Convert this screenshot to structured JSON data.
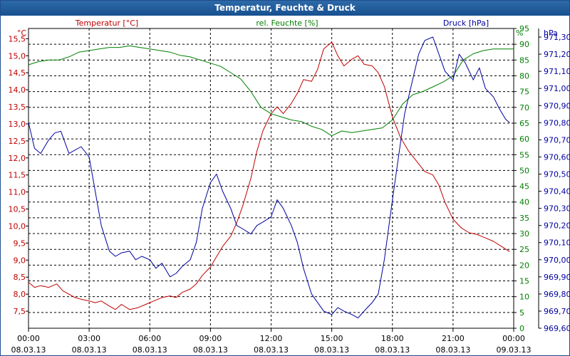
{
  "window": {
    "title": "Temperatur, Feuchte & Druck"
  },
  "colors": {
    "temperature": "#c00000",
    "humidity": "#008000",
    "pressure": "#0000a0",
    "grid": "#000000",
    "text": "#000000"
  },
  "chart_data": {
    "type": "line",
    "title": "Temperatur, Feuchte & Druck",
    "x_ticks": [
      {
        "time": "00:00",
        "date": "08.03.13"
      },
      {
        "time": "03:00",
        "date": "08.03.13"
      },
      {
        "time": "06:00",
        "date": "08.03.13"
      },
      {
        "time": "09:00",
        "date": "08.03.13"
      },
      {
        "time": "12:00",
        "date": "08.03.13"
      },
      {
        "time": "15:00",
        "date": "08.03.13"
      },
      {
        "time": "18:00",
        "date": "08.03.13"
      },
      {
        "time": "21:00",
        "date": "08.03.13"
      },
      {
        "time": "00:00",
        "date": "09.03.13"
      }
    ],
    "xlim_hours": [
      0,
      24
    ],
    "grid": true,
    "axes": {
      "temperature": {
        "unit": "°C",
        "label": "Temperatur [°C]",
        "ylim": [
          7.0,
          15.8
        ],
        "ticks": [
          "7,5",
          "8,0",
          "8,5",
          "9,0",
          "9,5",
          "10,0",
          "10,5",
          "11,0",
          "11,5",
          "12,0",
          "12,5",
          "13,0",
          "13,5",
          "14,0",
          "14,5",
          "15,0",
          "15,5"
        ],
        "tick_values": [
          7.5,
          8.0,
          8.5,
          9.0,
          9.5,
          10.0,
          10.5,
          11.0,
          11.5,
          12.0,
          12.5,
          13.0,
          13.5,
          14.0,
          14.5,
          15.0,
          15.5
        ]
      },
      "humidity": {
        "unit": "%",
        "label": "rel. Feuchte [%]",
        "ylim": [
          0,
          95
        ],
        "ticks": [
          "0",
          "5",
          "10",
          "15",
          "20",
          "25",
          "30",
          "35",
          "40",
          "45",
          "50",
          "55",
          "60",
          "65",
          "70",
          "75",
          "80",
          "85",
          "90",
          "95"
        ],
        "tick_values": [
          0,
          5,
          10,
          15,
          20,
          25,
          30,
          35,
          40,
          45,
          50,
          55,
          60,
          65,
          70,
          75,
          80,
          85,
          90,
          95
        ]
      },
      "pressure": {
        "unit": "hPa",
        "label": "Druck [hPa]",
        "ylim": [
          969.6,
          971.35
        ],
        "ticks": [
          "969,60",
          "969,70",
          "969,80",
          "969,90",
          "970,00",
          "970,10",
          "970,20",
          "970,30",
          "970,40",
          "970,50",
          "970,60",
          "970,70",
          "970,80",
          "970,90",
          "971,00",
          "971,10",
          "971,20",
          "971,30"
        ],
        "tick_values": [
          969.6,
          969.7,
          969.8,
          969.9,
          970.0,
          970.1,
          970.2,
          970.3,
          970.4,
          970.5,
          970.6,
          970.7,
          970.8,
          970.9,
          971.0,
          971.1,
          971.2,
          971.3
        ]
      }
    },
    "series": [
      {
        "name": "Temperatur [°C]",
        "axis": "temperature",
        "x": [
          0,
          0.3,
          0.6,
          1,
          1.4,
          1.7,
          2,
          2.3,
          2.6,
          3,
          3.3,
          3.6,
          4,
          4.3,
          4.6,
          5,
          5.4,
          5.8,
          6.2,
          6.6,
          7,
          7.3,
          7.6,
          8,
          8.3,
          8.6,
          9,
          9.3,
          9.6,
          10,
          10.3,
          10.6,
          11,
          11.3,
          11.6,
          12,
          12.3,
          12.6,
          13,
          13.3,
          13.6,
          14,
          14.3,
          14.6,
          15,
          15.3,
          15.6,
          16,
          16.3,
          16.6,
          17,
          17.3,
          17.6,
          18,
          18.4,
          18.8,
          19.2,
          19.6,
          20,
          20.3,
          20.6,
          21,
          21.4,
          21.8,
          22.2,
          22.6,
          23,
          23.4,
          23.8
        ],
        "values": [
          8.35,
          8.2,
          8.25,
          8.2,
          8.3,
          8.1,
          8.0,
          7.9,
          7.85,
          7.8,
          7.75,
          7.8,
          7.65,
          7.55,
          7.7,
          7.55,
          7.6,
          7.7,
          7.8,
          7.9,
          7.95,
          7.9,
          8.05,
          8.15,
          8.3,
          8.55,
          8.8,
          9.1,
          9.4,
          9.7,
          10.1,
          10.6,
          11.4,
          12.2,
          12.8,
          13.3,
          13.5,
          13.3,
          13.6,
          13.9,
          14.3,
          14.25,
          14.6,
          15.2,
          15.4,
          15.0,
          14.7,
          14.9,
          15.0,
          14.75,
          14.7,
          14.5,
          14.1,
          13.2,
          12.6,
          12.2,
          11.9,
          11.6,
          11.5,
          11.2,
          10.7,
          10.2,
          9.95,
          9.8,
          9.75,
          9.65,
          9.55,
          9.4,
          9.25
        ]
      },
      {
        "name": "rel. Feuchte [%]",
        "axis": "humidity",
        "x": [
          0,
          0.5,
          1,
          1.5,
          2,
          2.5,
          3,
          3.5,
          4,
          4.5,
          5,
          5.5,
          6,
          6.5,
          7,
          7.5,
          8,
          8.5,
          9,
          9.5,
          10,
          10.5,
          11,
          11.5,
          12,
          12.5,
          13,
          13.5,
          14,
          14.5,
          15,
          15.5,
          16,
          16.5,
          17,
          17.5,
          18,
          18.5,
          19,
          19.5,
          20,
          20.5,
          21,
          21.5,
          22,
          22.5,
          23,
          23.5,
          24
        ],
        "values": [
          83.5,
          84.5,
          85.0,
          85.0,
          86.0,
          87.5,
          88.0,
          88.5,
          89.0,
          89.0,
          89.5,
          89.0,
          88.5,
          88.0,
          87.5,
          86.5,
          86.0,
          85.0,
          84.0,
          83.0,
          81.0,
          79.0,
          75.0,
          70.0,
          68.0,
          67.0,
          66.0,
          65.5,
          64.0,
          63.0,
          61.0,
          62.5,
          62.0,
          62.5,
          63.0,
          63.5,
          66.0,
          71.0,
          74.0,
          75.0,
          76.5,
          78.0,
          80.0,
          85.0,
          87.0,
          88.0,
          88.5,
          88.5,
          88.5
        ]
      },
      {
        "name": "Druck [hPa]",
        "axis": "pressure",
        "x": [
          0,
          0.3,
          0.6,
          1,
          1.3,
          1.6,
          2,
          2.3,
          2.6,
          3,
          3.3,
          3.6,
          4,
          4.3,
          4.6,
          5,
          5.3,
          5.6,
          6,
          6.3,
          6.6,
          7,
          7.3,
          7.6,
          8,
          8.3,
          8.6,
          9,
          9.3,
          9.6,
          10,
          10.3,
          10.6,
          11,
          11.3,
          11.6,
          12,
          12.3,
          12.6,
          13,
          13.3,
          13.6,
          14,
          14.3,
          14.6,
          15,
          15.3,
          15.6,
          16,
          16.3,
          16.6,
          17,
          17.3,
          17.6,
          18,
          18.3,
          18.6,
          19,
          19.3,
          19.6,
          20,
          20.3,
          20.6,
          21,
          21.3,
          21.6,
          22,
          22.3,
          22.6,
          23,
          23.3,
          23.6,
          23.8
        ],
        "values": [
          970.8,
          970.65,
          970.62,
          970.7,
          970.74,
          970.75,
          970.62,
          970.64,
          970.66,
          970.6,
          970.4,
          970.2,
          970.05,
          970.02,
          970.04,
          970.05,
          970.0,
          970.02,
          970.0,
          969.95,
          969.98,
          969.9,
          969.92,
          969.96,
          970.0,
          970.1,
          970.3,
          970.45,
          970.5,
          970.4,
          970.3,
          970.2,
          970.18,
          970.15,
          970.2,
          970.22,
          970.25,
          970.35,
          970.3,
          970.2,
          970.1,
          969.95,
          969.8,
          969.75,
          969.7,
          969.68,
          969.72,
          969.7,
          969.68,
          969.66,
          969.7,
          969.75,
          969.8,
          970.0,
          970.35,
          970.6,
          970.85,
          971.05,
          971.2,
          971.28,
          971.3,
          971.2,
          971.1,
          971.05,
          971.2,
          971.15,
          971.05,
          971.12,
          971.0,
          970.95,
          970.88,
          970.82,
          970.8
        ]
      }
    ]
  }
}
